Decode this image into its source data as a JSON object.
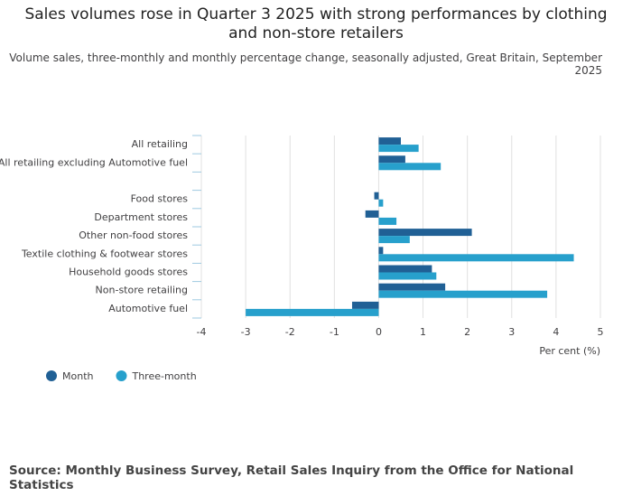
{
  "chart_data": {
    "type": "hbar",
    "title": "Sales volumes rose in Quarter 3 2025 with strong performances by clothing and non-store retailers",
    "subtitle": "Volume sales, three-monthly and monthly percentage change, seasonally adjusted, Great Britain, September 2025",
    "source": "Source: Monthly Business Survey, Retail Sales Inquiry from the Office for National Statistics",
    "x_label": "Per cent (%)",
    "categories": [
      "All retailing",
      "All retailing excluding Automotive fuel",
      null,
      "Food stores",
      "Department stores",
      "Other non-food stores",
      "Textile clothing & footwear stores",
      "Household goods stores",
      "Non-store retailing",
      "Automotive fuel"
    ],
    "series": [
      {
        "name": "Month",
        "color": "#206095",
        "values": [
          0.5,
          0.6,
          null,
          -0.1,
          -0.3,
          2.1,
          0.1,
          1.2,
          1.5,
          -0.6
        ]
      },
      {
        "name": "Three-month",
        "color": "#27a0cc",
        "values": [
          0.9,
          1.4,
          null,
          0.1,
          0.4,
          0.7,
          4.4,
          1.3,
          3.8,
          -3.0
        ]
      }
    ],
    "xlim": [
      -4,
      5
    ],
    "xticks": [
      -4,
      -3,
      -2,
      -1,
      0,
      1,
      2,
      3,
      4,
      5
    ],
    "grid": true,
    "legend": "bottom-left"
  }
}
